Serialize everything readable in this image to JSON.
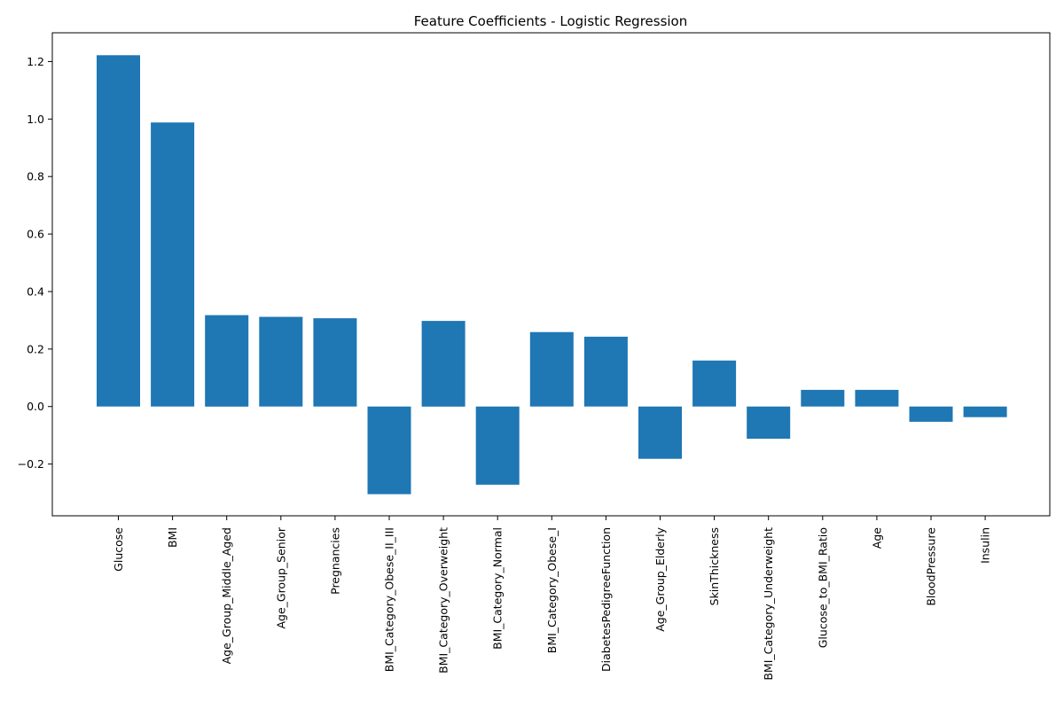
{
  "chart_data": {
    "type": "bar",
    "title": "Feature Coefficients - Logistic Regression",
    "xlabel": "",
    "ylabel": "",
    "categories": [
      "Glucose",
      "BMI",
      "Age_Group_Middle_Aged",
      "Age_Group_Senior",
      "Pregnancies",
      "BMI_Category_Obese_II_III",
      "BMI_Category_Overweight",
      "BMI_Category_Normal",
      "BMI_Category_Obese_I",
      "DiabetesPedigreeFunction",
      "Age_Group_Elderly",
      "SkinThickness",
      "BMI_Category_Underweight",
      "Glucose_to_BMI_Ratio",
      "Age",
      "BloodPressure",
      "Insulin"
    ],
    "values": [
      1.222,
      0.988,
      0.318,
      0.312,
      0.307,
      -0.305,
      0.298,
      -0.272,
      0.259,
      0.243,
      -0.182,
      0.16,
      -0.112,
      0.058,
      0.058,
      -0.053,
      -0.037
    ],
    "ylim": [
      -0.38,
      1.3
    ],
    "yticks": [
      "−0.2",
      "0.0",
      "0.2",
      "0.4",
      "0.6",
      "0.8",
      "1.0",
      "1.2"
    ],
    "ytick_values": [
      -0.2,
      0.0,
      0.2,
      0.4,
      0.6,
      0.8,
      1.0,
      1.2
    ],
    "grid": false,
    "bar_color": "#1f77b4"
  }
}
